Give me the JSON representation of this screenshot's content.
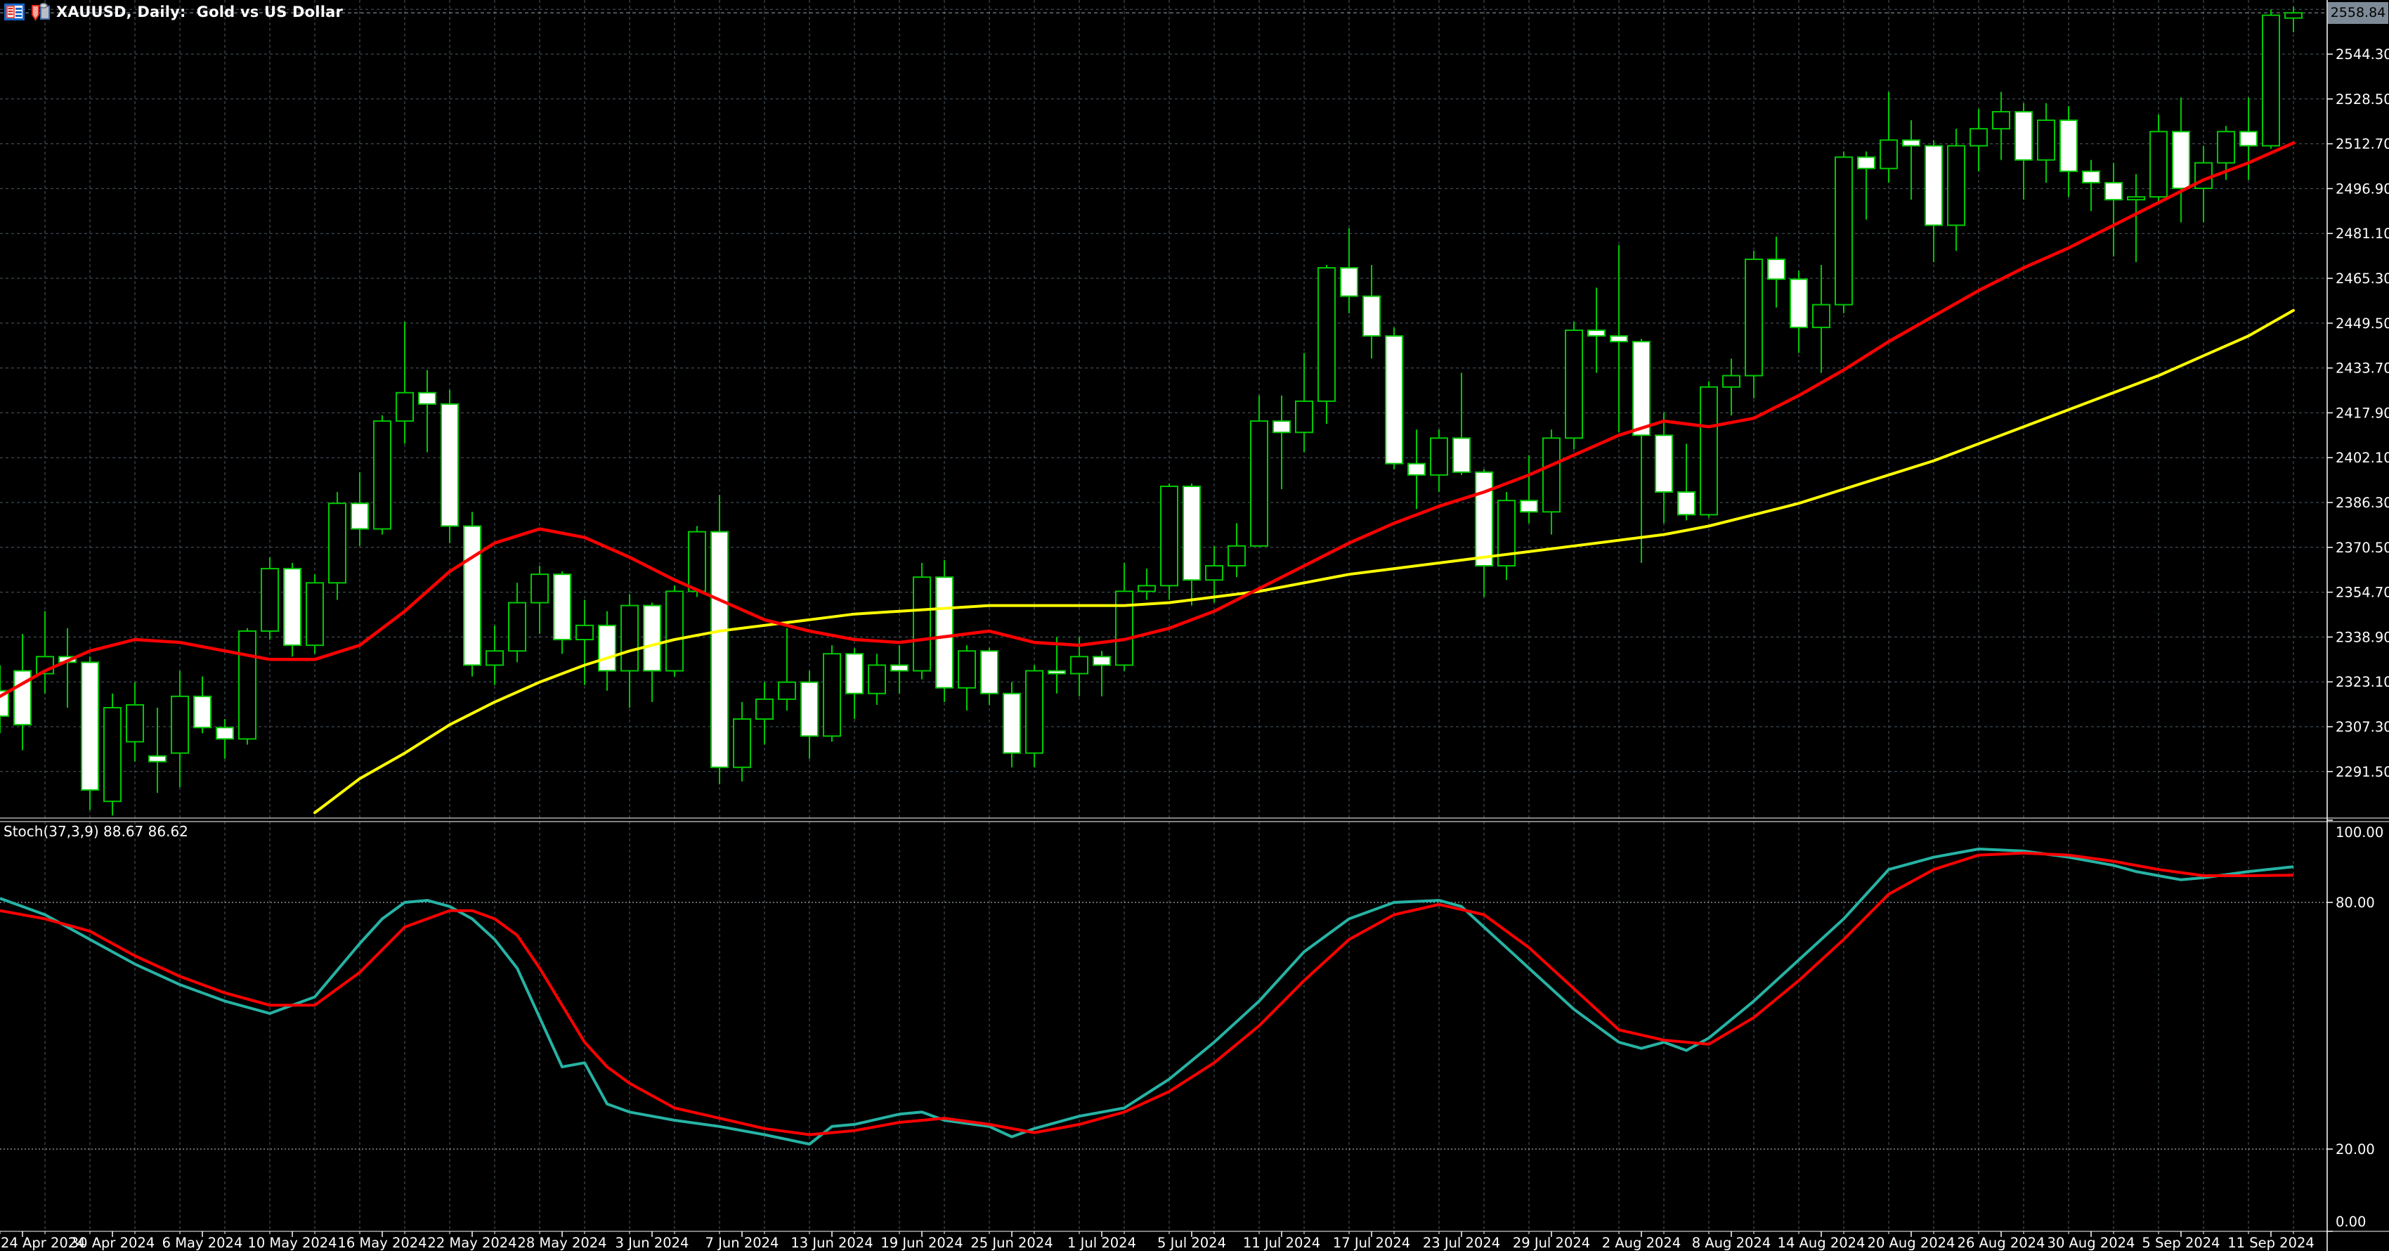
{
  "window": {
    "title": "XAUUSD, Daily:  Gold vs US Dollar",
    "icons": [
      "chart-list-icon",
      "one-click-trading-icon"
    ]
  },
  "colors": {
    "background": "#000000",
    "grid": "#4d5b66",
    "level_line": "#c8ced4",
    "candle_outline": "#00c800",
    "bull_fill": "#000000",
    "bear_fill": "#ffffff",
    "ma_red": "#ff0000",
    "ma_yellow": "#ffff00",
    "stoch_main": "#26b3a4",
    "stoch_signal": "#ff0000",
    "axis_text": "#ffffff",
    "separator": "#ffffff",
    "badge_bg": "#7e8b97",
    "badge_text": "#000000",
    "bid_line": "#9aa0a6"
  },
  "chart_data": {
    "type": "candlestick",
    "symbol": "XAUUSD",
    "timeframe": "Daily",
    "description": "Gold vs US Dollar",
    "current_price": "2558.84",
    "current_price_value": 2558.84,
    "price_axis": {
      "ticks": [
        "2544.30",
        "2528.50",
        "2512.70",
        "2496.90",
        "2481.10",
        "2465.30",
        "2449.50",
        "2433.70",
        "2417.90",
        "2402.10",
        "2386.30",
        "2370.50",
        "2354.70",
        "2338.90",
        "2323.10",
        "2307.30",
        "2291.50"
      ],
      "tick_step": 15.8
    },
    "time_axis": {
      "labels": [
        "24 Apr 2024",
        "30 Apr 2024",
        "6 May 2024",
        "10 May 2024",
        "16 May 2024",
        "22 May 2024",
        "28 May 2024",
        "3 Jun 2024",
        "7 Jun 2024",
        "13 Jun 2024",
        "19 Jun 2024",
        "25 Jun 2024",
        "1 Jul 2024",
        "5 Jul 2024",
        "11 Jul 2024",
        "17 Jul 2024",
        "23 Jul 2024",
        "29 Jul 2024",
        "2 Aug 2024",
        "8 Aug 2024",
        "14 Aug 2024",
        "20 Aug 2024",
        "26 Aug 2024",
        "30 Aug 2024",
        "5 Sep 2024",
        "11 Sep 2024"
      ],
      "first_label_candle_index": 1,
      "label_every_n_candles": 4
    },
    "candles": [
      [
        2320,
        2329,
        2305,
        2311
      ],
      [
        2327,
        2340,
        2299,
        2308
      ],
      [
        2326,
        2348,
        2319,
        2332
      ],
      [
        2332,
        2342,
        2314,
        2330
      ],
      [
        2330,
        2332,
        2278,
        2285
      ],
      [
        2281,
        2319,
        2276,
        2314
      ],
      [
        2302,
        2323,
        2295,
        2315
      ],
      [
        2297,
        2314,
        2284,
        2295
      ],
      [
        2298,
        2327,
        2286,
        2318
      ],
      [
        2318,
        2325,
        2305,
        2307
      ],
      [
        2307,
        2310,
        2296,
        2303
      ],
      [
        2303,
        2342,
        2301,
        2341
      ],
      [
        2341,
        2367,
        2338,
        2363
      ],
      [
        2363,
        2365,
        2332,
        2336
      ],
      [
        2336,
        2361,
        2333,
        2358
      ],
      [
        2358,
        2390,
        2352,
        2386
      ],
      [
        2386,
        2397,
        2371,
        2377
      ],
      [
        2377,
        2417,
        2375,
        2415
      ],
      [
        2415,
        2450,
        2407,
        2425
      ],
      [
        2425,
        2433,
        2404,
        2421
      ],
      [
        2421,
        2426,
        2372,
        2378
      ],
      [
        2378,
        2383,
        2325,
        2329
      ],
      [
        2329,
        2343,
        2322,
        2334
      ],
      [
        2334,
        2358,
        2330,
        2351
      ],
      [
        2351,
        2364,
        2340,
        2361
      ],
      [
        2361,
        2362,
        2333,
        2338
      ],
      [
        2338,
        2352,
        2322,
        2343
      ],
      [
        2343,
        2348,
        2320,
        2327
      ],
      [
        2327,
        2354,
        2314,
        2350
      ],
      [
        2350,
        2351,
        2316,
        2327
      ],
      [
        2327,
        2357,
        2325,
        2355
      ],
      [
        2355,
        2378,
        2353,
        2376
      ],
      [
        2376,
        2389,
        2287,
        2293
      ],
      [
        2293,
        2316,
        2288,
        2310
      ],
      [
        2310,
        2323,
        2301,
        2317
      ],
      [
        2317,
        2342,
        2313,
        2323
      ],
      [
        2323,
        2327,
        2296,
        2304
      ],
      [
        2304,
        2336,
        2302,
        2333
      ],
      [
        2333,
        2335,
        2310,
        2319
      ],
      [
        2319,
        2333,
        2315,
        2329
      ],
      [
        2329,
        2336,
        2319,
        2327
      ],
      [
        2327,
        2365,
        2324,
        2360
      ],
      [
        2360,
        2366,
        2316,
        2321
      ],
      [
        2321,
        2336,
        2313,
        2334
      ],
      [
        2334,
        2335,
        2315,
        2319
      ],
      [
        2319,
        2323,
        2293,
        2298
      ],
      [
        2298,
        2329,
        2293,
        2327
      ],
      [
        2327,
        2339,
        2319,
        2326
      ],
      [
        2326,
        2339,
        2318,
        2332
      ],
      [
        2332,
        2334,
        2318,
        2329
      ],
      [
        2329,
        2365,
        2327,
        2355
      ],
      [
        2355,
        2363,
        2352,
        2357
      ],
      [
        2357,
        2393,
        2352,
        2392
      ],
      [
        2392,
        2393,
        2350,
        2359
      ],
      [
        2359,
        2371,
        2351,
        2364
      ],
      [
        2364,
        2379,
        2360,
        2371
      ],
      [
        2371,
        2424,
        2371,
        2415
      ],
      [
        2415,
        2424,
        2391,
        2411
      ],
      [
        2411,
        2439,
        2404,
        2422
      ],
      [
        2422,
        2470,
        2414,
        2469
      ],
      [
        2469,
        2483,
        2453,
        2459
      ],
      [
        2459,
        2470,
        2437,
        2445
      ],
      [
        2445,
        2448,
        2398,
        2400
      ],
      [
        2400,
        2412,
        2384,
        2396
      ],
      [
        2396,
        2412,
        2390,
        2409
      ],
      [
        2409,
        2432,
        2396,
        2397
      ],
      [
        2397,
        2398,
        2353,
        2364
      ],
      [
        2364,
        2390,
        2359,
        2387
      ],
      [
        2387,
        2403,
        2379,
        2383
      ],
      [
        2383,
        2412,
        2375,
        2409
      ],
      [
        2409,
        2450,
        2405,
        2447
      ],
      [
        2447,
        2462,
        2432,
        2445
      ],
      [
        2445,
        2477,
        2411,
        2443
      ],
      [
        2443,
        2444,
        2365,
        2410
      ],
      [
        2410,
        2418,
        2379,
        2390
      ],
      [
        2390,
        2407,
        2380,
        2382
      ],
      [
        2382,
        2429,
        2381,
        2427
      ],
      [
        2427,
        2437,
        2417,
        2431
      ],
      [
        2431,
        2475,
        2423,
        2472
      ],
      [
        2472,
        2480,
        2455,
        2465
      ],
      [
        2465,
        2468,
        2439,
        2448
      ],
      [
        2448,
        2470,
        2432,
        2456
      ],
      [
        2456,
        2510,
        2453,
        2508
      ],
      [
        2508,
        2510,
        2486,
        2504
      ],
      [
        2504,
        2531,
        2499,
        2514
      ],
      [
        2514,
        2521,
        2493,
        2512
      ],
      [
        2512,
        2514,
        2471,
        2484
      ],
      [
        2484,
        2518,
        2475,
        2512
      ],
      [
        2512,
        2525,
        2503,
        2518
      ],
      [
        2518,
        2531,
        2507,
        2524
      ],
      [
        2524,
        2527,
        2493,
        2507
      ],
      [
        2507,
        2527,
        2499,
        2521
      ],
      [
        2521,
        2526,
        2494,
        2503
      ],
      [
        2503,
        2507,
        2489,
        2499
      ],
      [
        2499,
        2506,
        2473,
        2493
      ],
      [
        2493,
        2502,
        2471,
        2494
      ],
      [
        2494,
        2523,
        2492,
        2517
      ],
      [
        2517,
        2529,
        2485,
        2497
      ],
      [
        2497,
        2512,
        2485,
        2506
      ],
      [
        2506,
        2519,
        2500,
        2517
      ],
      [
        2517,
        2529,
        2500,
        2512
      ],
      [
        2512,
        2560,
        2511,
        2558
      ],
      [
        2557,
        2561,
        2552,
        2558.84
      ]
    ],
    "ma_red_anchors": [
      [
        0,
        2318
      ],
      [
        2,
        2327
      ],
      [
        4,
        2334
      ],
      [
        6,
        2338
      ],
      [
        8,
        2337
      ],
      [
        10,
        2334
      ],
      [
        12,
        2331
      ],
      [
        14,
        2331
      ],
      [
        16,
        2336
      ],
      [
        18,
        2348
      ],
      [
        20,
        2362
      ],
      [
        22,
        2372
      ],
      [
        24,
        2377
      ],
      [
        26,
        2374
      ],
      [
        28,
        2367
      ],
      [
        30,
        2359
      ],
      [
        32,
        2352
      ],
      [
        34,
        2345
      ],
      [
        36,
        2341
      ],
      [
        38,
        2338
      ],
      [
        40,
        2337
      ],
      [
        42,
        2339
      ],
      [
        44,
        2341
      ],
      [
        46,
        2337
      ],
      [
        48,
        2336
      ],
      [
        50,
        2338
      ],
      [
        52,
        2342
      ],
      [
        54,
        2348
      ],
      [
        56,
        2356
      ],
      [
        58,
        2364
      ],
      [
        60,
        2372
      ],
      [
        62,
        2379
      ],
      [
        64,
        2385
      ],
      [
        66,
        2390
      ],
      [
        68,
        2396
      ],
      [
        70,
        2403
      ],
      [
        72,
        2410
      ],
      [
        74,
        2415
      ],
      [
        76,
        2413
      ],
      [
        78,
        2416
      ],
      [
        80,
        2424
      ],
      [
        82,
        2433
      ],
      [
        84,
        2443
      ],
      [
        86,
        2452
      ],
      [
        88,
        2461
      ],
      [
        90,
        2469
      ],
      [
        92,
        2476
      ],
      [
        94,
        2484
      ],
      [
        96,
        2492
      ],
      [
        98,
        2500
      ],
      [
        100,
        2506
      ],
      [
        102,
        2513
      ]
    ],
    "ma_yellow_anchors": [
      [
        14,
        2277
      ],
      [
        16,
        2289
      ],
      [
        18,
        2298
      ],
      [
        20,
        2308
      ],
      [
        22,
        2316
      ],
      [
        24,
        2323
      ],
      [
        26,
        2329
      ],
      [
        28,
        2334
      ],
      [
        30,
        2338
      ],
      [
        32,
        2341
      ],
      [
        34,
        2343
      ],
      [
        36,
        2345
      ],
      [
        38,
        2347
      ],
      [
        40,
        2348
      ],
      [
        42,
        2349
      ],
      [
        44,
        2350
      ],
      [
        46,
        2350
      ],
      [
        48,
        2350
      ],
      [
        50,
        2350
      ],
      [
        52,
        2351
      ],
      [
        54,
        2353
      ],
      [
        56,
        2355
      ],
      [
        58,
        2358
      ],
      [
        60,
        2361
      ],
      [
        62,
        2363
      ],
      [
        64,
        2365
      ],
      [
        66,
        2367
      ],
      [
        68,
        2369
      ],
      [
        70,
        2371
      ],
      [
        72,
        2373
      ],
      [
        74,
        2375
      ],
      [
        76,
        2378
      ],
      [
        78,
        2382
      ],
      [
        80,
        2386
      ],
      [
        82,
        2391
      ],
      [
        84,
        2396
      ],
      [
        86,
        2401
      ],
      [
        88,
        2407
      ],
      [
        90,
        2413
      ],
      [
        92,
        2419
      ],
      [
        94,
        2425
      ],
      [
        96,
        2431
      ],
      [
        98,
        2438
      ],
      [
        100,
        2445
      ],
      [
        102,
        2454
      ]
    ]
  },
  "stochastic": {
    "label": "Stoch(37,3,9) 88.67 86.62",
    "params": "37,3,9",
    "main_value": "88.67",
    "signal_value": "86.62",
    "axis_ticks": [
      {
        "label": "100.00",
        "value": 100
      },
      {
        "label": "80.00",
        "value": 80
      },
      {
        "label": "20.00",
        "value": 20
      },
      {
        "label": "0.00",
        "value": 0
      }
    ],
    "level_lines": [
      80,
      20
    ],
    "main_anchors": [
      [
        0,
        81
      ],
      [
        2,
        77
      ],
      [
        4,
        71
      ],
      [
        6,
        65
      ],
      [
        8,
        60
      ],
      [
        10,
        56
      ],
      [
        12,
        53
      ],
      [
        14,
        57
      ],
      [
        16,
        70
      ],
      [
        17,
        76
      ],
      [
        18,
        80
      ],
      [
        19,
        80.5
      ],
      [
        20,
        79
      ],
      [
        21,
        76
      ],
      [
        22,
        71
      ],
      [
        23,
        64
      ],
      [
        24,
        52
      ],
      [
        25,
        40
      ],
      [
        26,
        41
      ],
      [
        27,
        31
      ],
      [
        28,
        29
      ],
      [
        30,
        27
      ],
      [
        32,
        25.5
      ],
      [
        34,
        23.5
      ],
      [
        36,
        21.2
      ],
      [
        37,
        25.5
      ],
      [
        38,
        26
      ],
      [
        40,
        28.5
      ],
      [
        41,
        29
      ],
      [
        42,
        27
      ],
      [
        44,
        25.5
      ],
      [
        45,
        23
      ],
      [
        46,
        25
      ],
      [
        48,
        28
      ],
      [
        50,
        30
      ],
      [
        52,
        37
      ],
      [
        54,
        46
      ],
      [
        56,
        56
      ],
      [
        58,
        68
      ],
      [
        60,
        76
      ],
      [
        62,
        80
      ],
      [
        64,
        80.5
      ],
      [
        65,
        79
      ],
      [
        66,
        74
      ],
      [
        68,
        64
      ],
      [
        70,
        54
      ],
      [
        72,
        46
      ],
      [
        73,
        44.5
      ],
      [
        74,
        46
      ],
      [
        75,
        44
      ],
      [
        76,
        47
      ],
      [
        78,
        56
      ],
      [
        80,
        66
      ],
      [
        82,
        76
      ],
      [
        84,
        88
      ],
      [
        86,
        91
      ],
      [
        88,
        93
      ],
      [
        90,
        92.5
      ],
      [
        92,
        91
      ],
      [
        94,
        89
      ],
      [
        95,
        87.5
      ],
      [
        96,
        86.5
      ],
      [
        97,
        85.5
      ],
      [
        98,
        86
      ],
      [
        100,
        87.5
      ],
      [
        102,
        88.67
      ]
    ],
    "signal_anchors": [
      [
        0,
        78
      ],
      [
        2,
        76
      ],
      [
        4,
        73
      ],
      [
        6,
        67
      ],
      [
        8,
        62
      ],
      [
        10,
        58
      ],
      [
        12,
        55
      ],
      [
        14,
        55
      ],
      [
        16,
        63
      ],
      [
        18,
        74
      ],
      [
        20,
        78
      ],
      [
        21,
        78
      ],
      [
        22,
        76
      ],
      [
        23,
        72
      ],
      [
        24,
        64
      ],
      [
        25,
        55
      ],
      [
        26,
        46
      ],
      [
        27,
        40
      ],
      [
        28,
        36
      ],
      [
        30,
        30
      ],
      [
        32,
        27.5
      ],
      [
        34,
        25
      ],
      [
        36,
        23.5
      ],
      [
        38,
        24.5
      ],
      [
        40,
        26.5
      ],
      [
        42,
        27.5
      ],
      [
        44,
        26
      ],
      [
        46,
        24
      ],
      [
        48,
        26
      ],
      [
        50,
        29
      ],
      [
        52,
        34
      ],
      [
        54,
        41
      ],
      [
        56,
        50
      ],
      [
        58,
        61
      ],
      [
        60,
        71
      ],
      [
        62,
        77
      ],
      [
        64,
        79.5
      ],
      [
        66,
        77
      ],
      [
        68,
        69
      ],
      [
        70,
        59
      ],
      [
        72,
        49
      ],
      [
        74,
        46.5
      ],
      [
        76,
        45.5
      ],
      [
        78,
        52
      ],
      [
        80,
        61
      ],
      [
        82,
        71
      ],
      [
        84,
        82
      ],
      [
        86,
        88
      ],
      [
        88,
        91.5
      ],
      [
        90,
        92
      ],
      [
        92,
        91.5
      ],
      [
        94,
        90
      ],
      [
        96,
        88
      ],
      [
        98,
        86.5
      ],
      [
        100,
        86.5
      ],
      [
        102,
        86.62
      ]
    ]
  }
}
